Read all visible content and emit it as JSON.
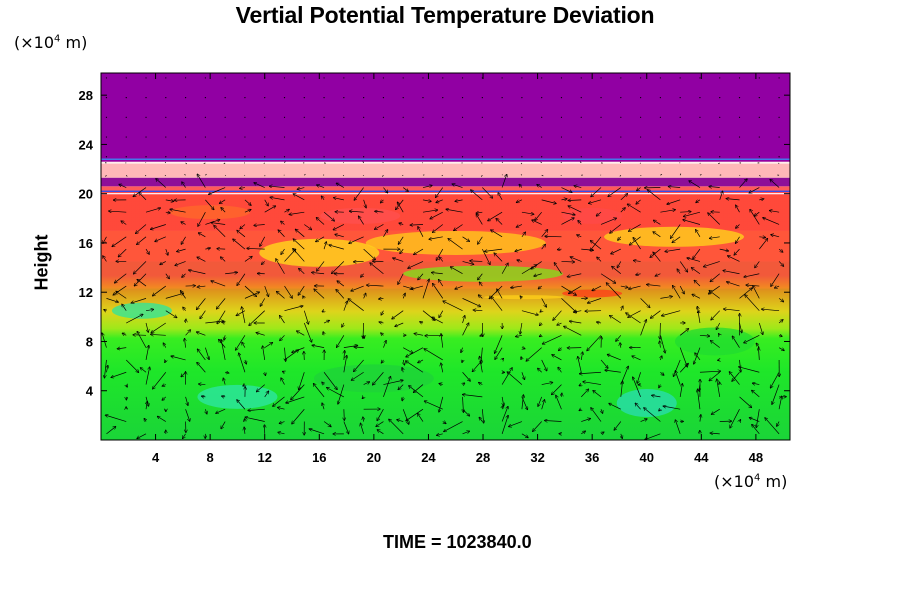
{
  "header": {
    "title": "Vertial Potential Temperature Deviation"
  },
  "units": {
    "y": "(×10",
    "y_sup": "4",
    "y_tail": " m)",
    "x": "(×10",
    "x_sup": "4",
    "x_tail": " m)"
  },
  "footer": {
    "time_label": "TIME = 1023840.0"
  },
  "chart_data": {
    "type": "heatmap",
    "title": "Vertial Potential Temperature Deviation",
    "xlabel": "",
    "ylabel": "Height",
    "x_unit": "(×10^4 m)",
    "y_unit": "(×10^4 m)",
    "xlim": [
      0,
      50.5
    ],
    "ylim": [
      0,
      29.8
    ],
    "x_ticks": [
      4,
      8,
      12,
      16,
      20,
      24,
      28,
      32,
      36,
      40,
      44,
      48
    ],
    "y_ticks": [
      4,
      8,
      12,
      16,
      20,
      24,
      28
    ],
    "bands": [
      {
        "y0": 0,
        "y1": 12.3,
        "color": "#22e022"
      },
      {
        "y0": 12.3,
        "y1": 14.5,
        "color": "#a6e61a"
      },
      {
        "y0": 14.5,
        "y1": 17.0,
        "color": "#ffd21a"
      },
      {
        "y0": 17.0,
        "y1": 19.9,
        "color": "#ff7a1a"
      },
      {
        "y0": 19.9,
        "y1": 20.6,
        "color": "#ff5a5a"
      },
      {
        "y0": 20.6,
        "y1": 21.3,
        "color": "#8e0f98"
      },
      {
        "y0": 21.3,
        "y1": 22.6,
        "color": "#ffb8b8"
      },
      {
        "y0": 22.6,
        "y1": 29.8,
        "color": "#9100a3"
      }
    ],
    "overlay": "wind vectors (arrows)",
    "time": "TIME = 1023840.0"
  }
}
